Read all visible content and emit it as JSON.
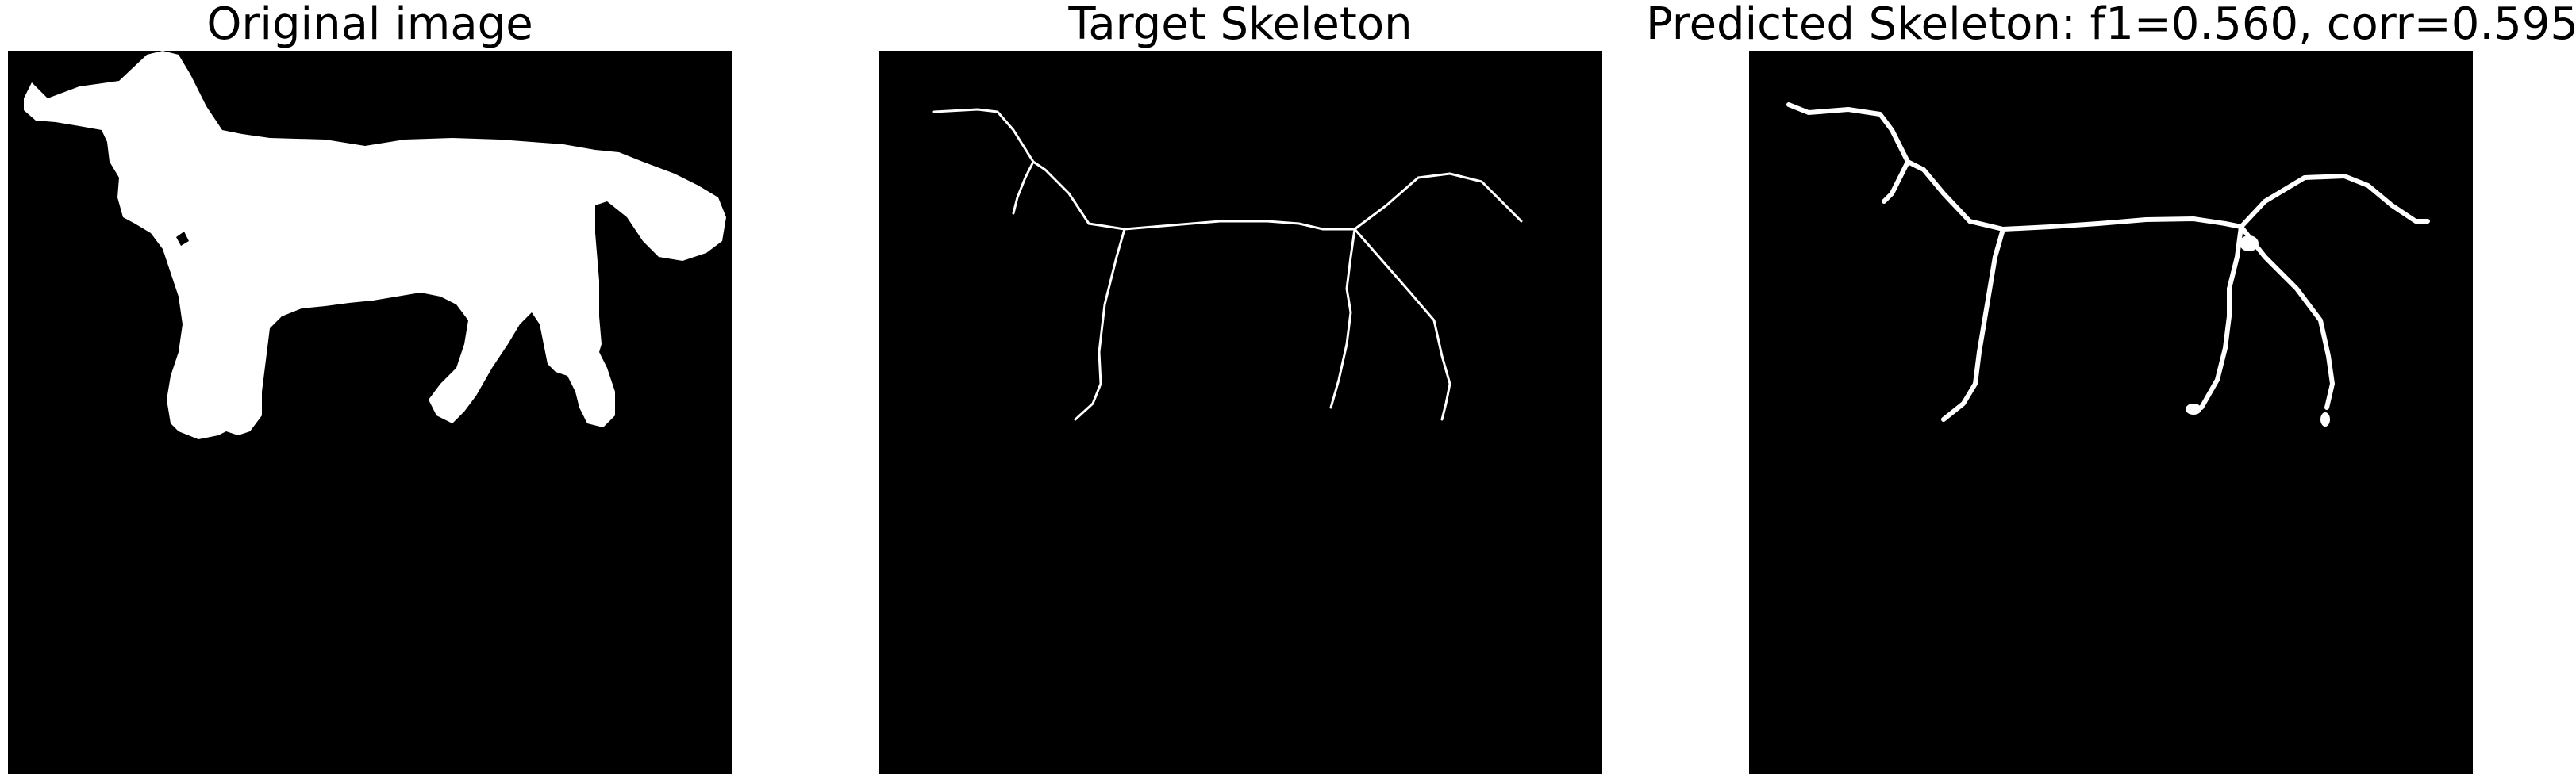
{
  "panels": [
    {
      "title": "Original image"
    },
    {
      "title": "Target Skeleton"
    },
    {
      "title": "Predicted Skeleton: f1=0.560, corr=0.595"
    }
  ],
  "colors": {
    "panel_background": "#000000",
    "foreground": "#ffffff",
    "page_background": "#ffffff"
  }
}
